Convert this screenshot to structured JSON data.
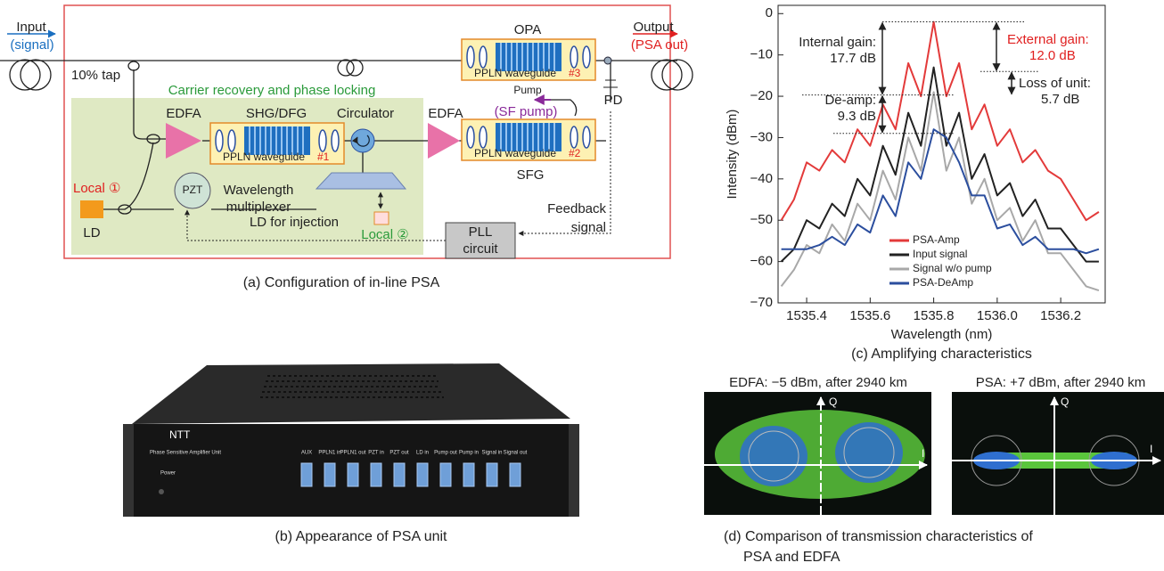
{
  "panel_a": {
    "caption": "(a) Configuration of in-line PSA",
    "input": [
      "Input",
      "(signal)"
    ],
    "output": [
      "Output",
      "(PSA out)"
    ],
    "tap": "10% tap",
    "carrier_recovery": "Carrier recovery and phase locking",
    "edfa_1": "EDFA",
    "edfa_2": "EDFA",
    "shg_dfg": "SHG/DFG",
    "circulator": "Circulator",
    "opa": "OPA",
    "sfg": "SFG",
    "waveguide_1": [
      "PPLN waveguide",
      "#1"
    ],
    "waveguide_2": [
      "PPLN waveguide",
      "#2"
    ],
    "waveguide_3": [
      "PPLN waveguide",
      "#3"
    ],
    "pump": [
      "Pump",
      "(SF pump)"
    ],
    "pd": "PD",
    "pzt": "PZT",
    "multiplexer": [
      "Wavelength",
      "multiplexer"
    ],
    "local_1": "Local ①",
    "ld": "LD",
    "ld_injection": "LD for injection",
    "local_2": "Local ②",
    "feedback": [
      "Feedback",
      "signal"
    ],
    "pll": [
      "PLL",
      "circuit"
    ]
  },
  "panel_b": {
    "caption": "(b) Appearance of PSA unit",
    "brand": "NTT",
    "product": "Phase Sensitive Amplifier Unit",
    "power": "Power",
    "ports": [
      "AUX",
      "PPLN1 in",
      "PPLN1 out",
      "PZT in",
      "PZT out",
      "LD in",
      "Pump out",
      "Pump in",
      "Signal in",
      "Signal out"
    ]
  },
  "chart_data": {
    "type": "line",
    "caption": "(c) Amplifying characteristics",
    "x_label": "Wavelength (nm)",
    "y_label": "Intensity (dBm)",
    "x": [
      1535.32,
      1535.36,
      1535.4,
      1535.44,
      1535.48,
      1535.52,
      1535.56,
      1535.6,
      1535.64,
      1535.68,
      1535.72,
      1535.76,
      1535.8,
      1535.84,
      1535.88,
      1535.92,
      1535.96,
      1536.0,
      1536.04,
      1536.08,
      1536.12,
      1536.16,
      1536.2,
      1536.24,
      1536.28,
      1536.32
    ],
    "series": [
      {
        "name": "PSA-Amp",
        "color": "#e33a3a",
        "values": [
          -50,
          -45,
          -36,
          -38,
          -33,
          -36,
          -28,
          -32,
          -22,
          -28,
          -12,
          -20,
          -2,
          -20,
          -12,
          -28,
          -22,
          -32,
          -28,
          -36,
          -33,
          -38,
          -40,
          -45,
          -50,
          -48
        ]
      },
      {
        "name": "Input signal",
        "color": "#222222",
        "values": [
          -60,
          -57,
          -50,
          -52,
          -46,
          -49,
          -40,
          -44,
          -32,
          -39,
          -24,
          -32,
          -13,
          -32,
          -24,
          -40,
          -34,
          -44,
          -41,
          -49,
          -45,
          -52,
          -52,
          -56,
          -60,
          -60
        ]
      },
      {
        "name": "Signal w/o pump",
        "color": "#a8a8a8",
        "values": [
          -66,
          -62,
          -56,
          -58,
          -51,
          -55,
          -46,
          -50,
          -38,
          -45,
          -30,
          -38,
          -19,
          -38,
          -30,
          -46,
          -40,
          -50,
          -47,
          -55,
          -50,
          -58,
          -58,
          -62,
          -66,
          -67
        ]
      },
      {
        "name": "PSA-DeAmp",
        "color": "#2b4e9e",
        "values": [
          -57,
          -57,
          -57,
          -56,
          -54,
          -56,
          -51,
          -53,
          -44,
          -49,
          -36,
          -40,
          -28,
          -30,
          -36,
          -44,
          -44,
          -52,
          -51,
          -56,
          -54,
          -57,
          -57,
          -57,
          -58,
          -57
        ]
      }
    ],
    "xlim": [
      1535.31,
      1536.34
    ],
    "ylim": [
      -70,
      2
    ],
    "xticks": [
      1535.4,
      1535.6,
      1535.8,
      {
        "value": 1536.0,
        "label": "1536.0"
      },
      1536.2
    ],
    "yticks": [
      0,
      {
        "value": -10,
        "label": "−10"
      },
      {
        "value": -20,
        "label": "−20"
      },
      {
        "value": -30,
        "label": "−30"
      },
      {
        "value": -40,
        "label": "−40"
      },
      {
        "value": -50,
        "label": "−50"
      },
      {
        "value": -60,
        "label": "−60"
      },
      {
        "value": -70,
        "label": "−70"
      }
    ],
    "legend": "lower left",
    "reference_levels": [
      -2,
      -14,
      -19.7,
      -29
    ],
    "annotations": {
      "internal_gain": [
        "Internal gain:",
        "17.7 dB"
      ],
      "external_gain": [
        "External gain:",
        "12.0 dB"
      ],
      "loss_of_unit": [
        "Loss of unit:",
        "5.7 dB"
      ],
      "de_amp": [
        "De-amp:",
        "9.3 dB"
      ]
    }
  },
  "panel_d": {
    "caption": [
      "(d) Comparison of transmission characteristics of",
      "PSA and EDFA"
    ],
    "plots": [
      {
        "title": "EDFA: −5 dBm, after 2940 km",
        "q": "Q",
        "i": "I"
      },
      {
        "title": "PSA: +7 dBm, after 2940 km",
        "q": "Q",
        "i": "I"
      }
    ]
  }
}
